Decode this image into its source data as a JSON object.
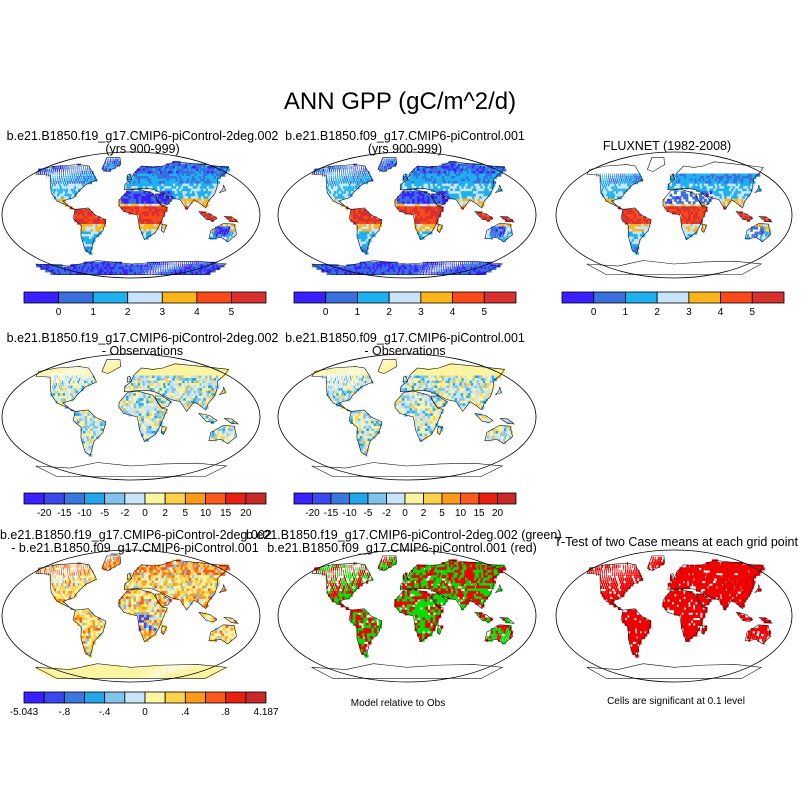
{
  "main_title": "ANN GPP (gC/m^2/d)",
  "panels": [
    {
      "id": "p1",
      "line1": "b.e21.B1850.f19_g17.CMIP6-piControl-2deg.002",
      "line2": "(yrs 900-999)",
      "fill": "abs-a"
    },
    {
      "id": "p2",
      "line1": "b.e21.B1850.f09_g17.CMIP6-piControl.001",
      "line2": "(yrs 900-999)",
      "fill": "abs-b"
    },
    {
      "id": "p3",
      "line1": "FLUXNET (1982-2008)",
      "line2": "",
      "fill": "abs-obs"
    },
    {
      "id": "p4",
      "line1": "b.e21.B1850.f19_g17.CMIP6-piControl-2deg.002",
      "line2": "- Observations",
      "fill": "diff-a"
    },
    {
      "id": "p5",
      "line1": "b.e21.B1850.f09_g17.CMIP6-piControl.001",
      "line2": "- Observations",
      "fill": "diff-b"
    },
    {
      "id": "p7",
      "line1": "b.e21.B1850.f19_g17.CMIP6-piControl-2deg.002",
      "line2": "- b.e21.B1850.f09_g17.CMIP6-piControl.001",
      "fill": "diff-ab"
    },
    {
      "id": "p8",
      "line1": "b.e21.B1850.f19_g17.CMIP6-piControl-2deg.002 (green)",
      "line2": "b.e21.B1850.f09_g17.CMIP6-piControl.001 (red)",
      "fill": "rel"
    },
    {
      "id": "p9",
      "line1": "T-Test of two Case means at each grid point",
      "line2": "",
      "fill": "ttest"
    }
  ],
  "notes": {
    "relative": "Model relative to Obs",
    "ttest": "Cells are significant at 0.1 level"
  },
  "chart_data": [
    {
      "type": "colorbar",
      "name": "absolute",
      "colors": [
        "#3a1fff",
        "#3a6fe0",
        "#1fb0ee",
        "#c8e4f8",
        "#fbb419",
        "#fb4a1a",
        "#d93030"
      ],
      "tick_labels": [
        "0",
        "1",
        "2",
        "3",
        "4",
        "5"
      ]
    },
    {
      "type": "colorbar",
      "name": "difference",
      "colors": [
        "#3a1fff",
        "#3a48f0",
        "#3a78e0",
        "#22a8ea",
        "#80c4ee",
        "#c8e4f8",
        "#fbf4a0",
        "#fbd24a",
        "#fb9a19",
        "#fb5a1a",
        "#e82010",
        "#c82828"
      ],
      "tick_labels": [
        "-20",
        "-15",
        "-10",
        "-5",
        "-2",
        "0",
        "2",
        "5",
        "10",
        "15",
        "20"
      ]
    },
    {
      "type": "colorbar",
      "name": "case-difference",
      "colors": [
        "#3a1fff",
        "#3a48f0",
        "#3a78e0",
        "#22a8ea",
        "#80c4ee",
        "#c8e4f8",
        "#fbf4a0",
        "#fbd24a",
        "#fb9a19",
        "#fb5a1a",
        "#e82010",
        "#c82828"
      ],
      "tick_labels": [
        "-5.043",
        "-.8",
        "-.4",
        "0",
        ".4",
        ".8",
        "4.187"
      ]
    }
  ]
}
